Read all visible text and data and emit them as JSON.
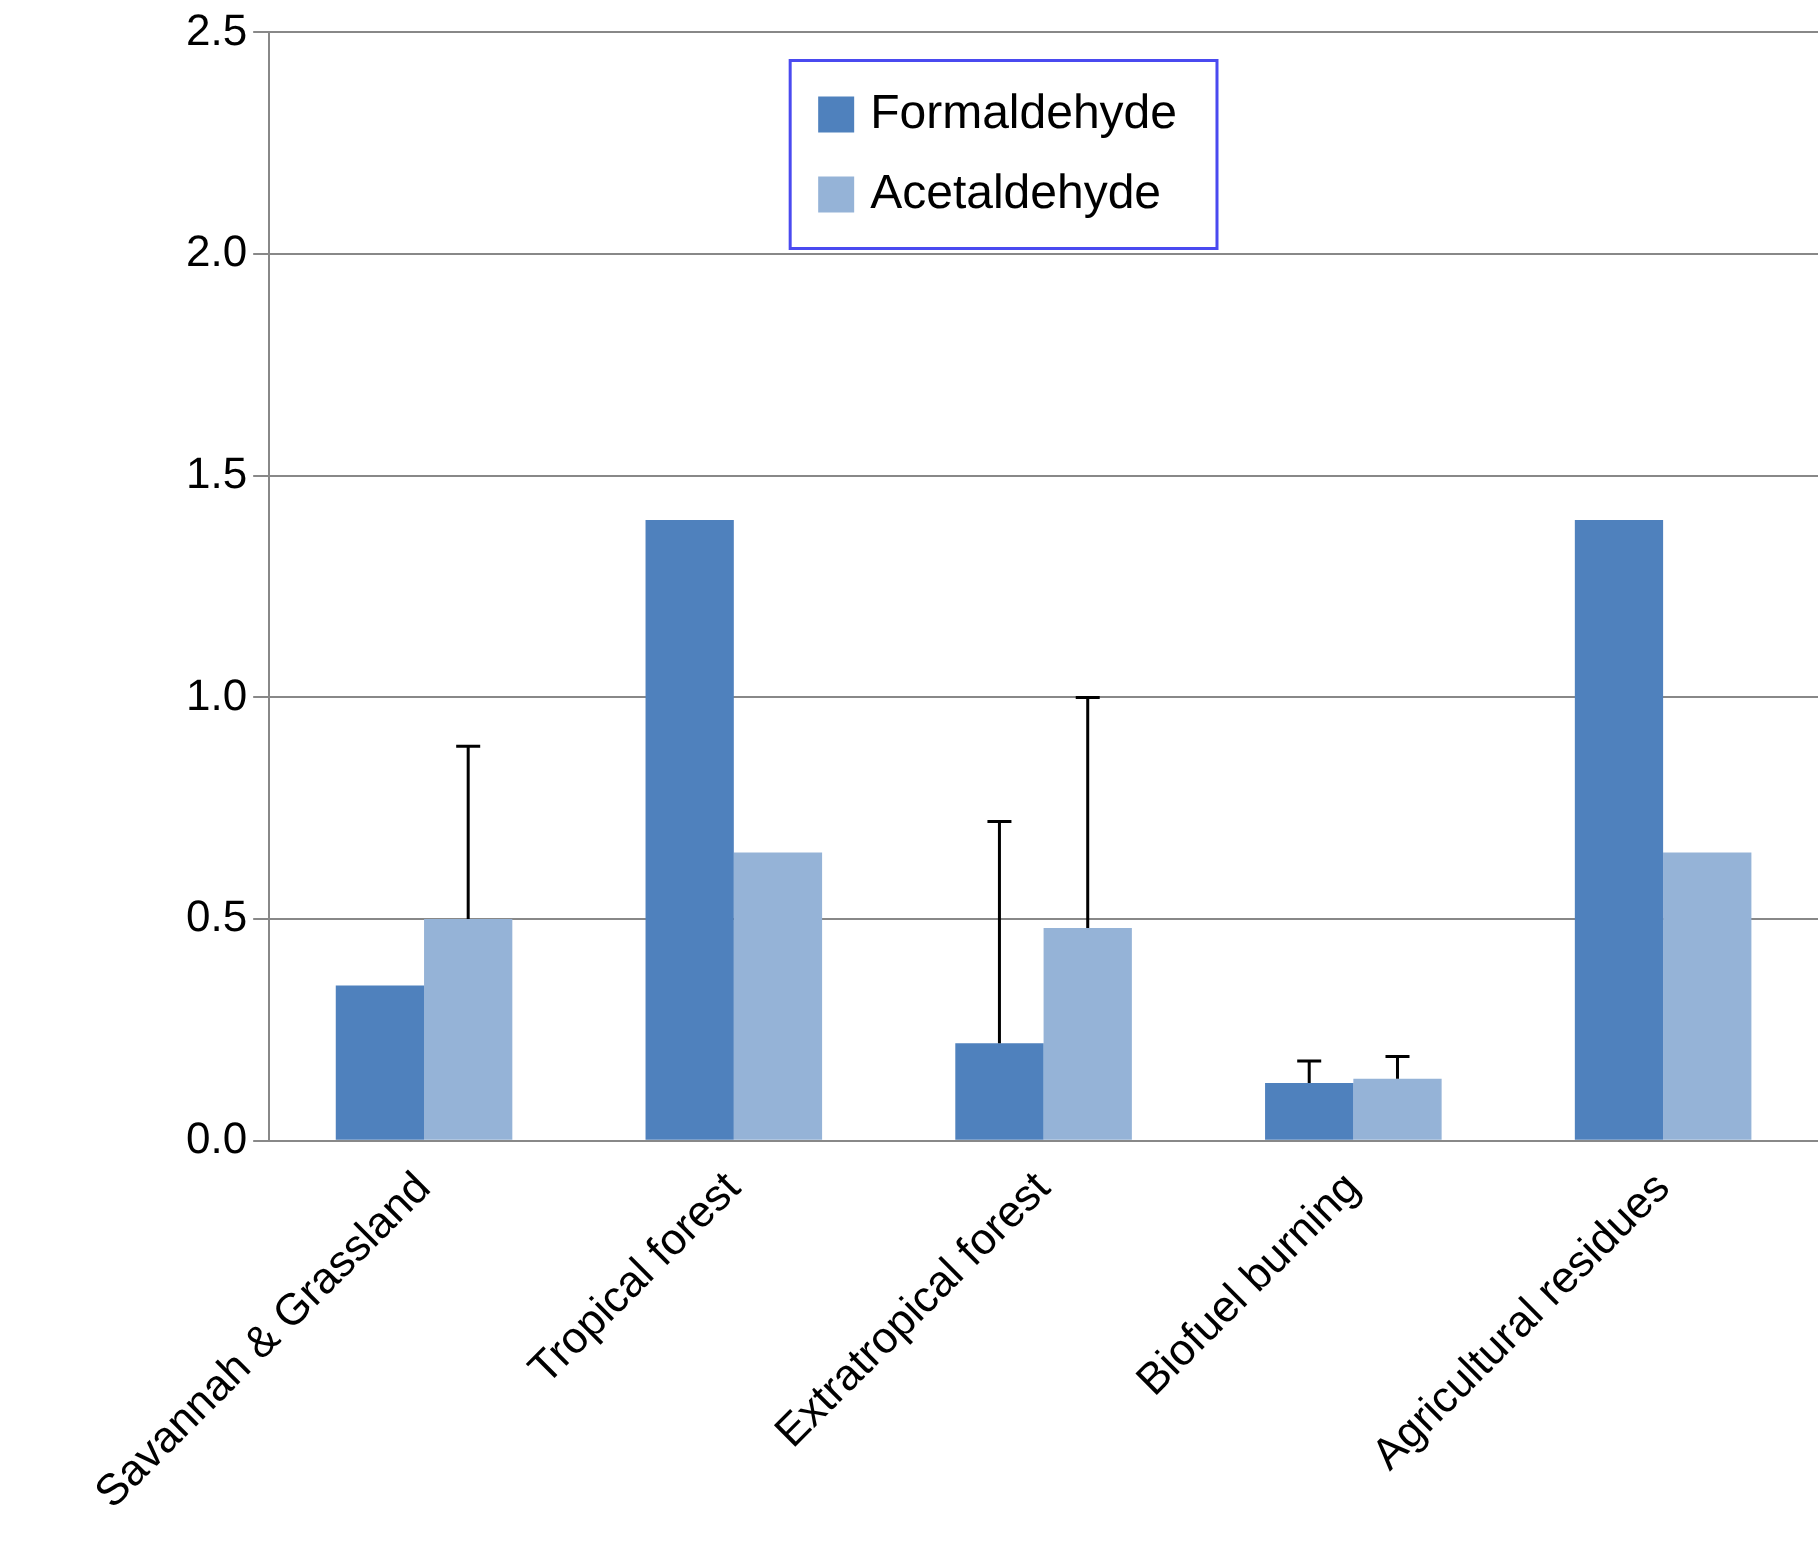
{
  "chart_data": {
    "type": "bar",
    "categories": [
      "Savannah & Grassland",
      "Tropical forest",
      "Extratropical forest",
      "Biofuel burning",
      "Agricultural residues"
    ],
    "series": [
      {
        "name": "Formaldehyde",
        "color": "#4f81bd",
        "values": [
          0.35,
          1.4,
          0.22,
          0.13,
          1.4
        ],
        "errors": [
          null,
          null,
          [
            0.22,
            0.72
          ],
          [
            0.13,
            0.18
          ],
          null
        ]
      },
      {
        "name": "Acetaldehyde",
        "color": "#95b3d7",
        "values": [
          0.5,
          0.65,
          0.48,
          0.14,
          0.65
        ],
        "errors": [
          [
            0.5,
            0.89
          ],
          null,
          [
            0.48,
            1.0
          ],
          [
            0.14,
            0.19
          ],
          null
        ]
      }
    ],
    "ylim": [
      0,
      2.5
    ],
    "yticks": [
      {
        "value": 0,
        "label": "0.0"
      },
      {
        "value": 0.5,
        "label": "0.5"
      },
      {
        "value": 1,
        "label": "1.0"
      },
      {
        "value": 1.5,
        "label": "1.5"
      },
      {
        "value": 2,
        "label": "2.0"
      },
      {
        "value": 2.5,
        "label": "2.5"
      }
    ],
    "grid": "y",
    "legend": "top"
  }
}
